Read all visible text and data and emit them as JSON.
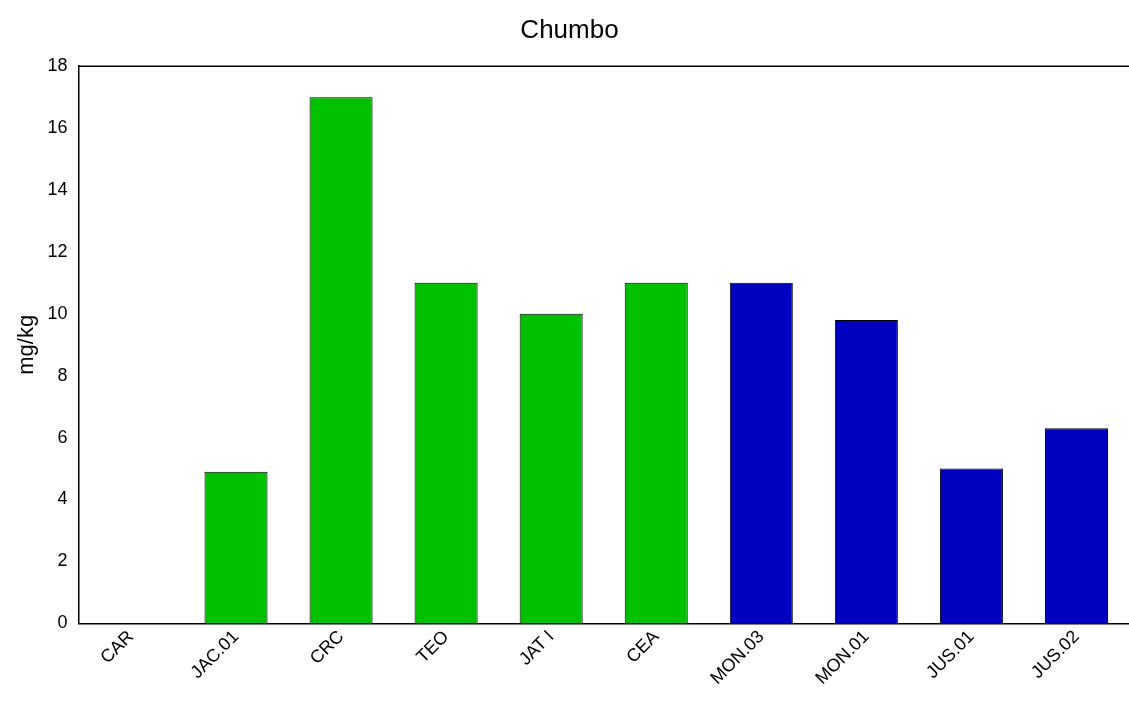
{
  "chart_data": {
    "type": "bar",
    "title": "Chumbo",
    "ylabel": "mg/kg",
    "categories": [
      "CAR",
      "JAC.01",
      "CRC",
      "TEO",
      "JAT I",
      "CEA",
      "MON.03",
      "MON.01",
      "JUS.01",
      "JUS.02"
    ],
    "values": [
      0,
      4.9,
      17,
      11,
      10,
      11,
      11,
      9.8,
      5,
      6.3
    ],
    "colors": [
      "#00c000",
      "#00c000",
      "#00c000",
      "#00c000",
      "#00c000",
      "#00c000",
      "#0000c0",
      "#0000c0",
      "#0000c0",
      "#0000c0"
    ],
    "ylim": [
      0,
      18
    ],
    "yticks": [
      0,
      2,
      4,
      6,
      8,
      10,
      12,
      14,
      16,
      18
    ],
    "grid": false,
    "legend": false
  }
}
